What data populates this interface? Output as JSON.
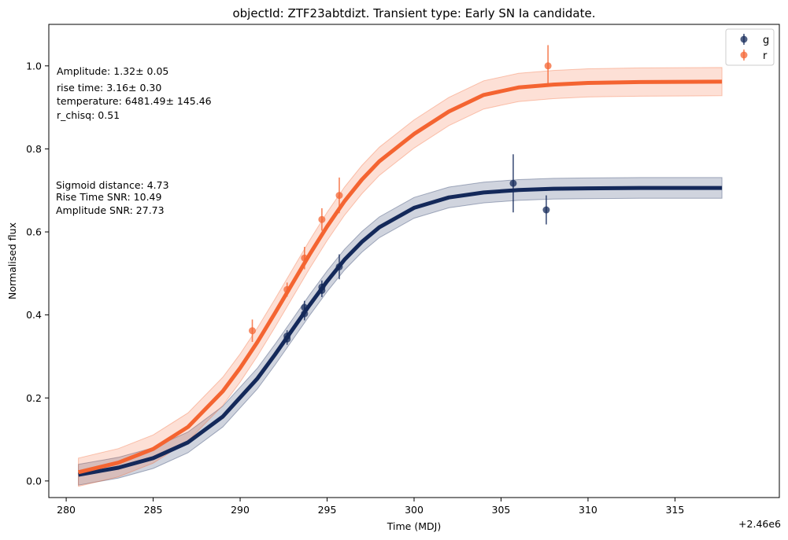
{
  "chart_data": {
    "type": "line",
    "title": "objectId: ZTF23abtdizt. Transient type: Early SN Ia candidate.",
    "xlabel": "Time (MDJ)",
    "ylabel": "Normalised flux",
    "x_offset_label": "+2.46e6",
    "xlim": [
      279.0,
      321.0
    ],
    "ylim": [
      -0.04,
      1.1
    ],
    "xticks": [
      280,
      285,
      290,
      295,
      300,
      305,
      310,
      315
    ],
    "yticks": [
      0.0,
      0.2,
      0.4,
      0.6,
      0.8,
      1.0
    ],
    "grid": false,
    "legend_position": "top-right",
    "annotations": [
      "Amplitude: 1.32± 0.05",
      "rise time: 3.16± 0.30",
      "temperature: 6481.49± 145.46",
      "r_chisq: 0.51",
      "Sigmoid distance: 4.73",
      "Rise Time SNR: 10.49",
      "Amplitude SNR: 27.73"
    ],
    "series": [
      {
        "name": "g",
        "color": "#14295a",
        "model_x": [
          280.7,
          283,
          285,
          287,
          289,
          291,
          292,
          293,
          294,
          295,
          296,
          297,
          298,
          300,
          302,
          304,
          306,
          308,
          310,
          313,
          317.7
        ],
        "model_y": [
          0.015,
          0.032,
          0.055,
          0.093,
          0.155,
          0.247,
          0.304,
          0.364,
          0.424,
          0.481,
          0.533,
          0.576,
          0.611,
          0.658,
          0.683,
          0.695,
          0.701,
          0.704,
          0.705,
          0.706,
          0.706
        ],
        "band_halfwidth": 0.025,
        "points": [
          {
            "x": 292.7,
            "y": 0.342,
            "err": 0.014
          },
          {
            "x": 292.7,
            "y": 0.349,
            "err": 0.014
          },
          {
            "x": 293.7,
            "y": 0.403,
            "err": 0.016
          },
          {
            "x": 293.7,
            "y": 0.418,
            "err": 0.016
          },
          {
            "x": 294.7,
            "y": 0.459,
            "err": 0.016
          },
          {
            "x": 294.7,
            "y": 0.467,
            "err": 0.016
          },
          {
            "x": 295.7,
            "y": 0.516,
            "err": 0.03
          },
          {
            "x": 305.7,
            "y": 0.717,
            "err": 0.07
          },
          {
            "x": 307.6,
            "y": 0.653,
            "err": 0.035
          }
        ]
      },
      {
        "name": "r",
        "color": "#f46431",
        "model_x": [
          280.7,
          283,
          285,
          287,
          289,
          290,
          291,
          292,
          293,
          294,
          295,
          296,
          297,
          298,
          300,
          302,
          304,
          306,
          308,
          310,
          313,
          317.7
        ],
        "model_y": [
          0.021,
          0.044,
          0.077,
          0.13,
          0.216,
          0.272,
          0.335,
          0.404,
          0.475,
          0.546,
          0.613,
          0.674,
          0.726,
          0.77,
          0.836,
          0.89,
          0.93,
          0.948,
          0.955,
          0.959,
          0.961,
          0.962
        ],
        "band_halfwidth": 0.034,
        "points": [
          {
            "x": 290.7,
            "y": 0.362,
            "err": 0.027
          },
          {
            "x": 292.7,
            "y": 0.461,
            "err": 0.017
          },
          {
            "x": 293.7,
            "y": 0.537,
            "err": 0.027
          },
          {
            "x": 294.7,
            "y": 0.63,
            "err": 0.027
          },
          {
            "x": 295.7,
            "y": 0.688,
            "err": 0.043
          },
          {
            "x": 307.7,
            "y": 1.0,
            "err": 0.05
          }
        ]
      }
    ]
  }
}
